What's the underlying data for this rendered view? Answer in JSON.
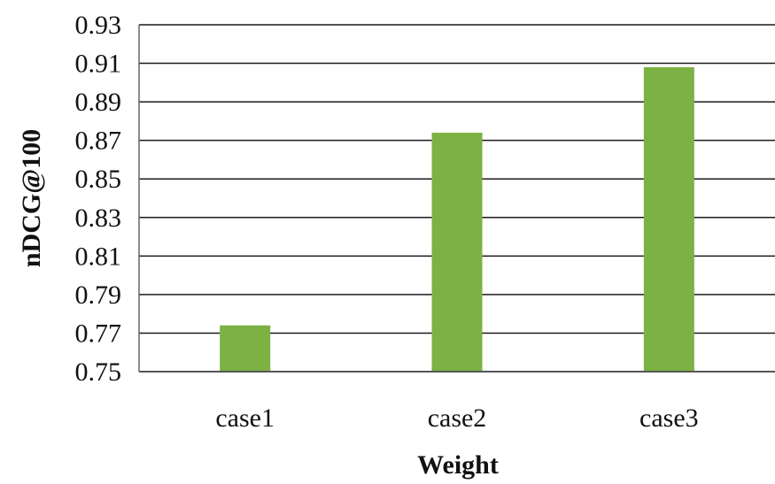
{
  "chart_data": {
    "type": "bar",
    "title": "",
    "xlabel": "Weight",
    "ylabel": "nDCG@100",
    "categories": [
      "case1",
      "case2",
      "case3"
    ],
    "values": [
      0.774,
      0.874,
      0.908
    ],
    "ylim": [
      0.75,
      0.93
    ],
    "yticks": [
      "0.75",
      "0.77",
      "0.79",
      "0.81",
      "0.83",
      "0.85",
      "0.87",
      "0.89",
      "0.91",
      "0.93"
    ],
    "grid": true,
    "legend": "none",
    "bar_color": "#7cb244"
  }
}
